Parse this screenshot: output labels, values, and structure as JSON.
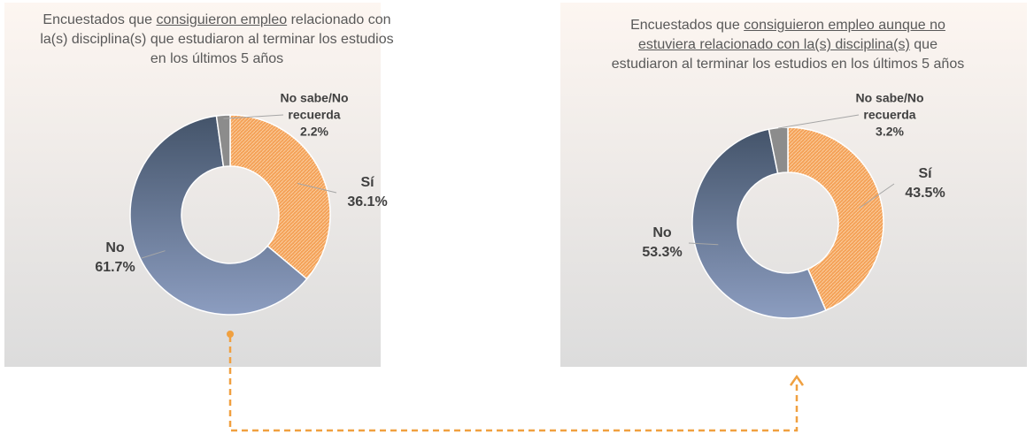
{
  "chart_data": [
    {
      "type": "donut",
      "title": "Encuestados que consiguieron empleo relacionado con la(s) disciplina(s) que estudiaron al terminar los estudios en los últimos 5 años",
      "underlined": "consiguieron empleo",
      "categories": [
        "Sí",
        "No",
        "No sabe/No recuerda"
      ],
      "values": [
        36.1,
        61.7,
        2.2
      ],
      "value_labels": [
        "36.1%",
        "61.7%",
        "2.2%"
      ],
      "colors": [
        "#f4a259",
        "#5a6a8c",
        "#8c8c8c"
      ]
    },
    {
      "type": "donut",
      "title": "Encuestados que consiguieron empleo aunque no estuviera relacionado con la(s) disciplina(s) que estudiaron al terminar los estudios en los últimos 5 años",
      "underlined": "consiguieron empleo aunque no estuviera relacionado con la(s) disciplina(s)",
      "categories": [
        "Sí",
        "No",
        "No sabe/No recuerda"
      ],
      "values": [
        43.5,
        53.3,
        3.2
      ],
      "value_labels": [
        "43.5%",
        "53.3%",
        "3.2%"
      ],
      "colors": [
        "#f4a259",
        "#5a6a8c",
        "#8c8c8c"
      ]
    }
  ]
}
